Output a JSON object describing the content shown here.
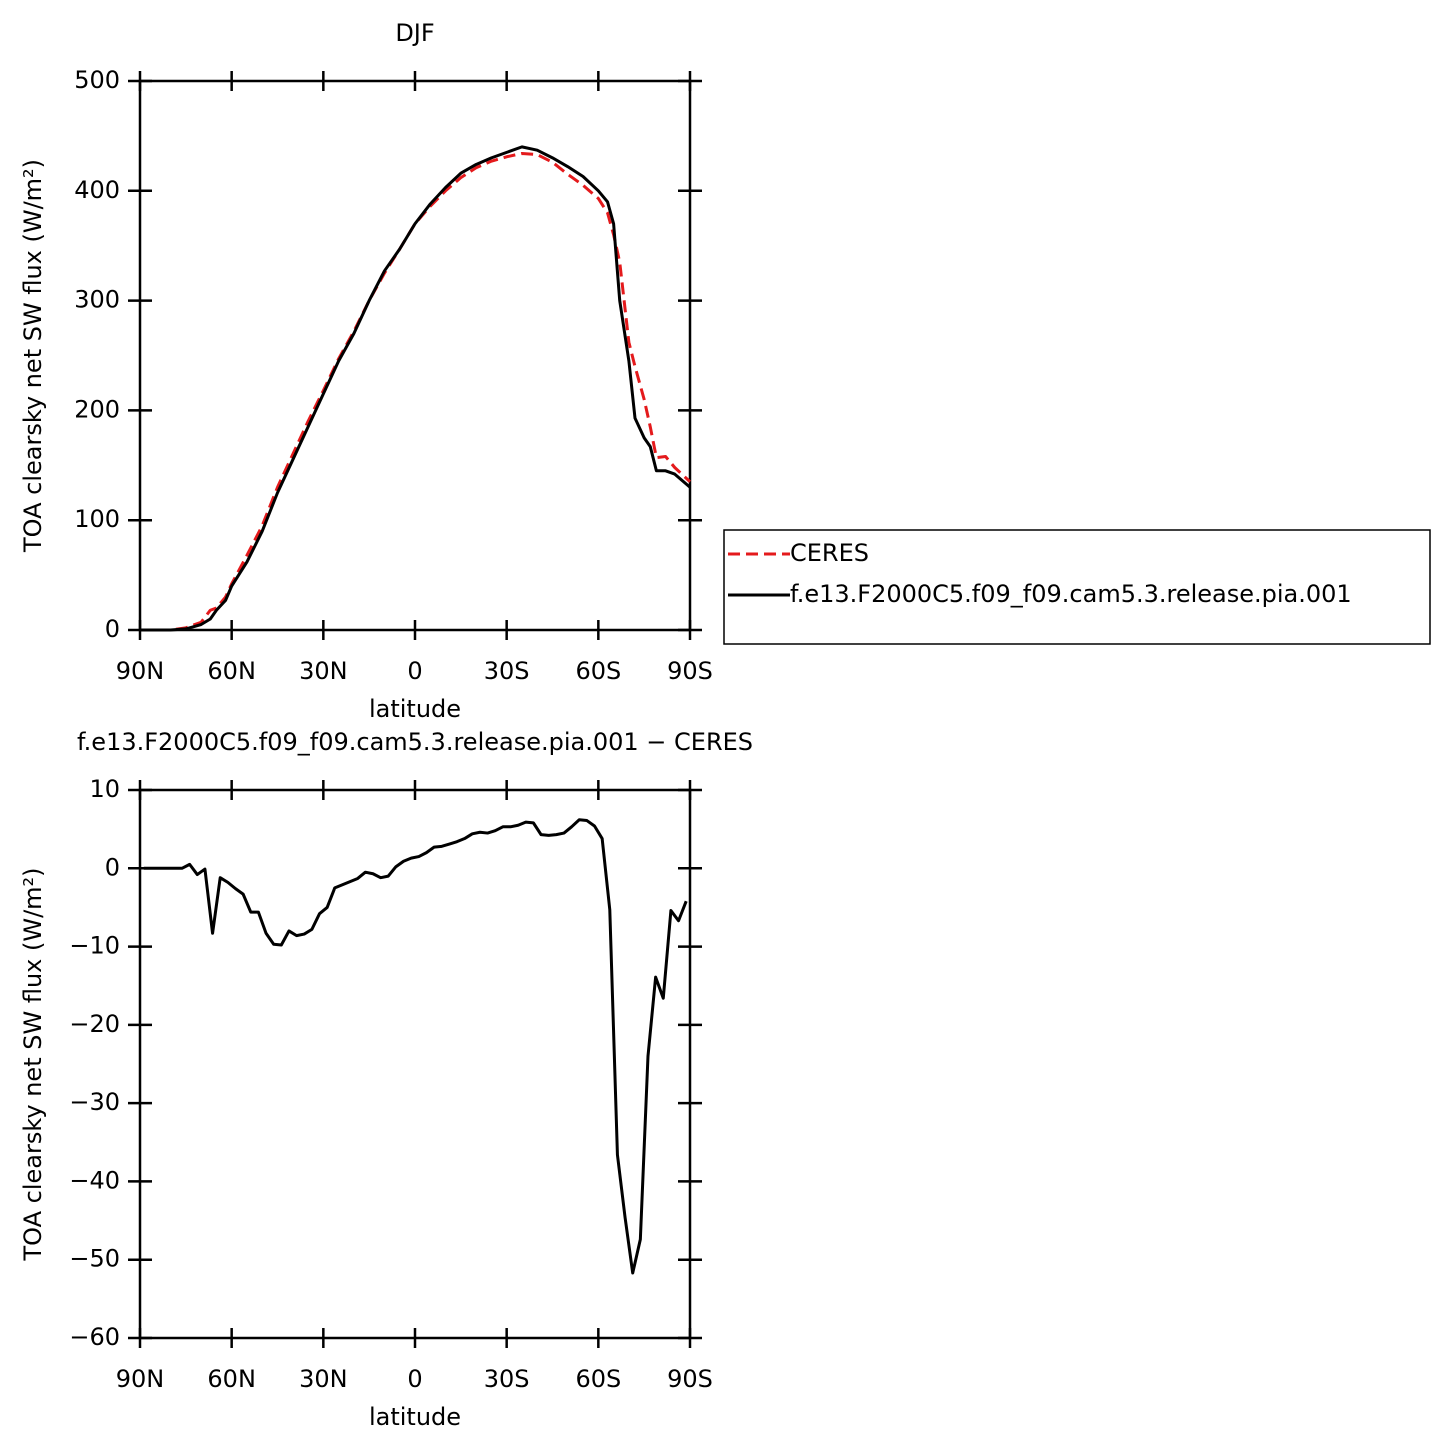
{
  "chart_data": [
    {
      "type": "line",
      "title": "DJF",
      "xlabel": "latitude",
      "ylabel": "TOA clearsky net SW flux (W/m²)",
      "x": [
        90,
        80,
        75,
        70,
        67,
        65,
        62,
        60,
        55,
        50,
        45,
        40,
        35,
        30,
        25,
        20,
        15,
        10,
        5,
        0,
        -5,
        -10,
        -15,
        -20,
        -25,
        -30,
        -35,
        -40,
        -45,
        -50,
        -55,
        -60,
        -63,
        -65,
        -67,
        -70,
        -72,
        -75,
        -77,
        -79,
        -82,
        -85,
        -90
      ],
      "xlim": [
        90,
        -90
      ],
      "xticks": [
        {
          "value": 90,
          "label": "90N"
        },
        {
          "value": 60,
          "label": "60N"
        },
        {
          "value": 30,
          "label": "30N"
        },
        0,
        {
          "value": -30,
          "label": "30S"
        },
        {
          "value": -60,
          "label": "60S"
        },
        {
          "value": -90,
          "label": "90S"
        }
      ],
      "ylim": [
        0,
        500
      ],
      "yticks": [
        0,
        100,
        200,
        300,
        400,
        500
      ],
      "legend": "right",
      "series": [
        {
          "name": "CERES",
          "color": "#e41a1c",
          "dashed": true,
          "values": [
            0,
            0,
            2,
            7,
            18,
            20,
            30,
            42,
            68,
            95,
            130,
            160,
            190,
            218,
            247,
            272,
            300,
            325,
            347,
            370,
            386,
            400,
            412,
            421,
            427,
            431,
            434,
            433,
            426,
            415,
            405,
            393,
            380,
            360,
            335,
            262,
            240,
            210,
            185,
            157,
            158,
            148,
            135
          ]
        },
        {
          "name": "f.e13.F2000C5.f09_f09.cam5.3.release.pia.001",
          "color": "#000000",
          "dashed": false,
          "values": [
            0,
            0,
            1,
            5,
            10,
            18,
            27,
            40,
            62,
            90,
            125,
            155,
            185,
            215,
            245,
            270,
            300,
            327,
            347,
            370,
            388,
            403,
            416,
            424,
            430,
            435,
            440,
            437,
            430,
            422,
            413,
            400,
            390,
            370,
            300,
            245,
            193,
            175,
            167,
            145,
            145,
            142,
            130
          ]
        }
      ]
    },
    {
      "type": "line",
      "title": "f.e13.F2000C5.f09_f09.cam5.3.release.pia.001 − CERES",
      "xlabel": "latitude",
      "ylabel": "TOA clearsky net SW flux (W/m²)",
      "x": [
        88.75,
        86.25,
        83.75,
        81.25,
        78.75,
        76.25,
        73.75,
        71.25,
        68.75,
        66.25,
        63.75,
        61.25,
        58.75,
        56.25,
        53.75,
        51.25,
        48.75,
        46.25,
        43.75,
        41.25,
        38.75,
        36.25,
        33.75,
        31.25,
        28.75,
        26.25,
        23.75,
        21.25,
        18.75,
        16.25,
        13.75,
        11.25,
        8.75,
        6.25,
        3.75,
        1.25,
        -1.25,
        -3.75,
        -6.25,
        -8.75,
        -11.25,
        -13.75,
        -16.25,
        -18.75,
        -21.25,
        -23.75,
        -26.25,
        -28.75,
        -31.25,
        -33.75,
        -36.25,
        -38.75,
        -41.25,
        -43.75,
        -46.25,
        -48.75,
        -51.25,
        -53.75,
        -56.25,
        -58.75,
        -61.25,
        -63.75,
        -66.25,
        -68.75,
        -71.25,
        -73.75,
        -76.25,
        -78.75,
        -81.25,
        -83.75,
        -86.25,
        -88.75
      ],
      "xlim": [
        90,
        -90
      ],
      "xticks": [
        {
          "value": 90,
          "label": "90N"
        },
        {
          "value": 60,
          "label": "60N"
        },
        {
          "value": 30,
          "label": "30N"
        },
        0,
        {
          "value": -30,
          "label": "30S"
        },
        {
          "value": -60,
          "label": "60S"
        },
        {
          "value": -90,
          "label": "90S"
        }
      ],
      "ylim": [
        -60,
        10
      ],
      "yticks": [
        10,
        0,
        {
          "value": -10,
          "label": "−10"
        },
        {
          "value": -20,
          "label": "−20"
        },
        {
          "value": -30,
          "label": "−30"
        },
        {
          "value": -40,
          "label": "−40"
        },
        {
          "value": -50,
          "label": "−50"
        },
        {
          "value": -60,
          "label": "−60"
        }
      ],
      "series": [
        {
          "color": "#000000",
          "dashed": false,
          "values": [
            0,
            0,
            0,
            0,
            0,
            0,
            0.5,
            -0.8,
            -0.1,
            -8.3,
            -1.2,
            -1.8,
            -2.6,
            -3.3,
            -5.6,
            -5.6,
            -8.3,
            -9.7,
            -9.8,
            -8.0,
            -8.6,
            -8.4,
            -7.8,
            -5.8,
            -5.0,
            -2.5,
            -2.1,
            -1.7,
            -1.3,
            -0.5,
            -0.7,
            -1.2,
            -1.0,
            0.2,
            0.9,
            1.3,
            1.5,
            2.0,
            2.7,
            2.8,
            3.1,
            3.4,
            3.8,
            4.4,
            4.6,
            4.5,
            4.8,
            5.3,
            5.3,
            5.5,
            5.9,
            5.8,
            4.3,
            4.2,
            4.3,
            4.5,
            5.3,
            6.2,
            6.1,
            5.4,
            3.8,
            -5.3,
            -36.6,
            -44.6,
            -51.7,
            -47.4,
            -24,
            -13.9,
            -16.6,
            -5.4,
            -6.7,
            -4.2
          ]
        }
      ]
    }
  ]
}
